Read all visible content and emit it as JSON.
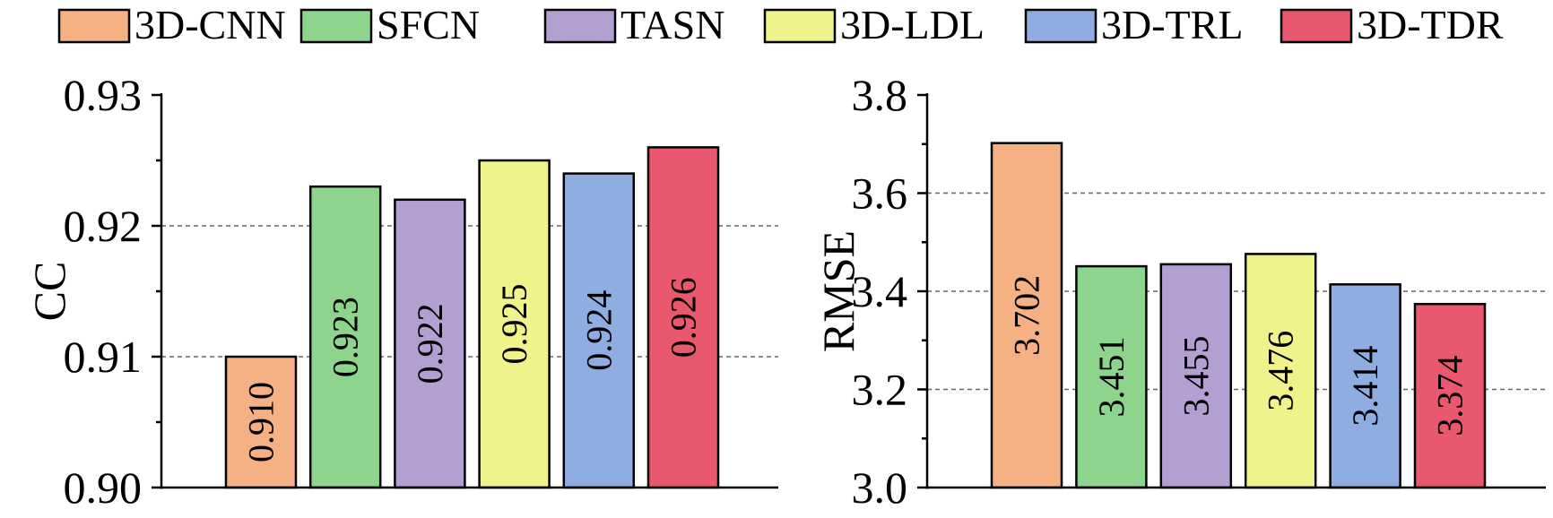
{
  "legend": [
    {
      "label": "3D-CNN",
      "color": "#F5B083"
    },
    {
      "label": "SFCN",
      "color": "#8DD48C"
    },
    {
      "label": "TASN",
      "color": "#B49FD3"
    },
    {
      "label": "3D-LDL",
      "color": "#F0F38B"
    },
    {
      "label": "3D-TRL",
      "color": "#8FADE0"
    },
    {
      "label": "3D-TDR",
      "color": "#E9586E"
    }
  ],
  "chart_data": [
    {
      "type": "bar",
      "categories": [
        "3D-CNN",
        "SFCN",
        "TASN",
        "3D-LDL",
        "3D-TRL",
        "3D-TDR"
      ],
      "values": [
        0.91,
        0.923,
        0.922,
        0.925,
        0.924,
        0.926
      ],
      "value_labels": [
        "0.910",
        "0.923",
        "0.922",
        "0.925",
        "0.924",
        "0.926"
      ],
      "ylabel": "CC",
      "ylim": [
        0.9,
        0.93
      ],
      "yticks": [
        0.9,
        0.91,
        0.92,
        0.93
      ],
      "ytick_labels": [
        "0.90",
        "0.91",
        "0.92",
        "0.93"
      ],
      "grid": true,
      "legend_position": "top"
    },
    {
      "type": "bar",
      "categories": [
        "3D-CNN",
        "SFCN",
        "TASN",
        "3D-LDL",
        "3D-TRL",
        "3D-TDR"
      ],
      "values": [
        3.702,
        3.451,
        3.455,
        3.476,
        3.414,
        3.374
      ],
      "value_labels": [
        "3.702",
        "3.451",
        "3.455",
        "3.476",
        "3.414",
        "3.374"
      ],
      "ylabel": "RMSE",
      "ylim": [
        3.0,
        3.8
      ],
      "yticks": [
        3.0,
        3.2,
        3.4,
        3.6,
        3.8
      ],
      "ytick_labels": [
        "3.0",
        "3.2",
        "3.4",
        "3.6",
        "3.8"
      ],
      "grid": true,
      "legend_position": "top"
    }
  ]
}
